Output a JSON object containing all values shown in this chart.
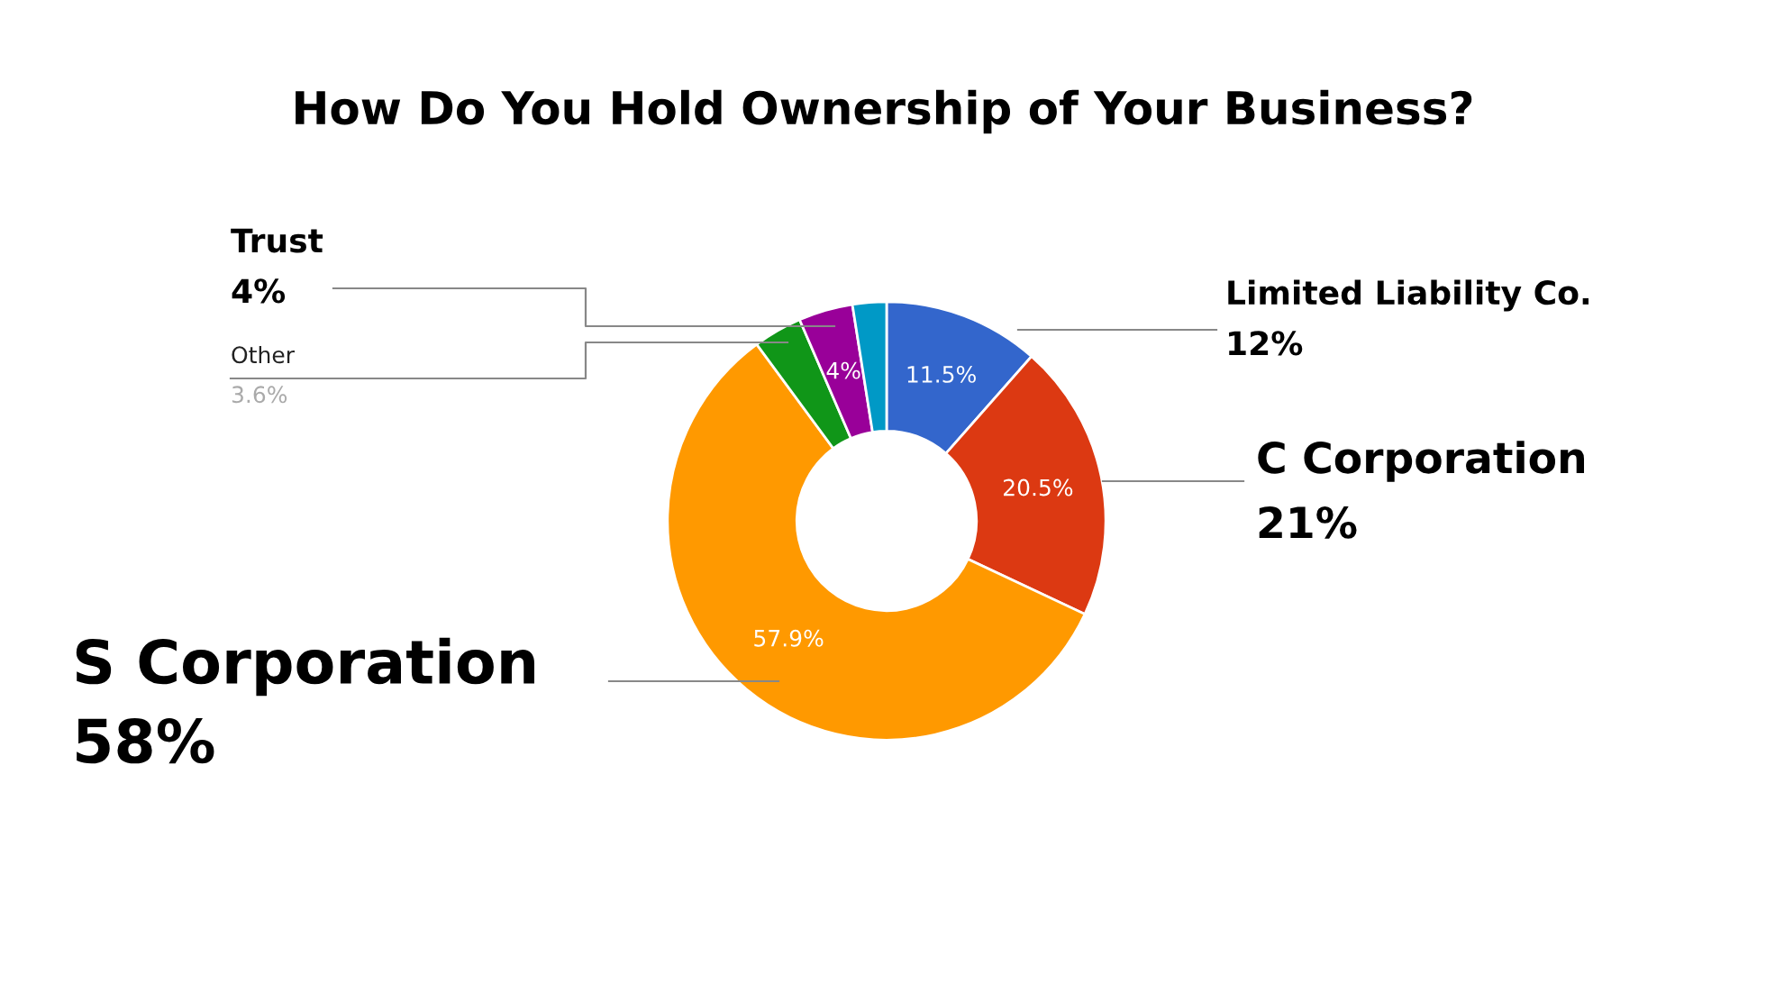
{
  "chart_data": {
    "type": "donut",
    "title": "How Do You Hold Ownership of Your Business?",
    "categories": [
      "Limited Liability Co.",
      "C Corporation",
      "S Corporation",
      "Other",
      "Trust",
      null
    ],
    "values": [
      11.5,
      20.5,
      57.9,
      3.6,
      4,
      2.5
    ],
    "colors": [
      "#3366cc",
      "#dc3912",
      "#ff9900",
      "#109618",
      "#990099",
      "#0099c6"
    ],
    "value_labels": [
      "11.5%",
      "20.5%",
      "57.9%",
      null,
      "4%",
      null
    ],
    "annotations": [
      "12%",
      "21%",
      "58%",
      "3.6%",
      "4%"
    ],
    "legend": false
  }
}
